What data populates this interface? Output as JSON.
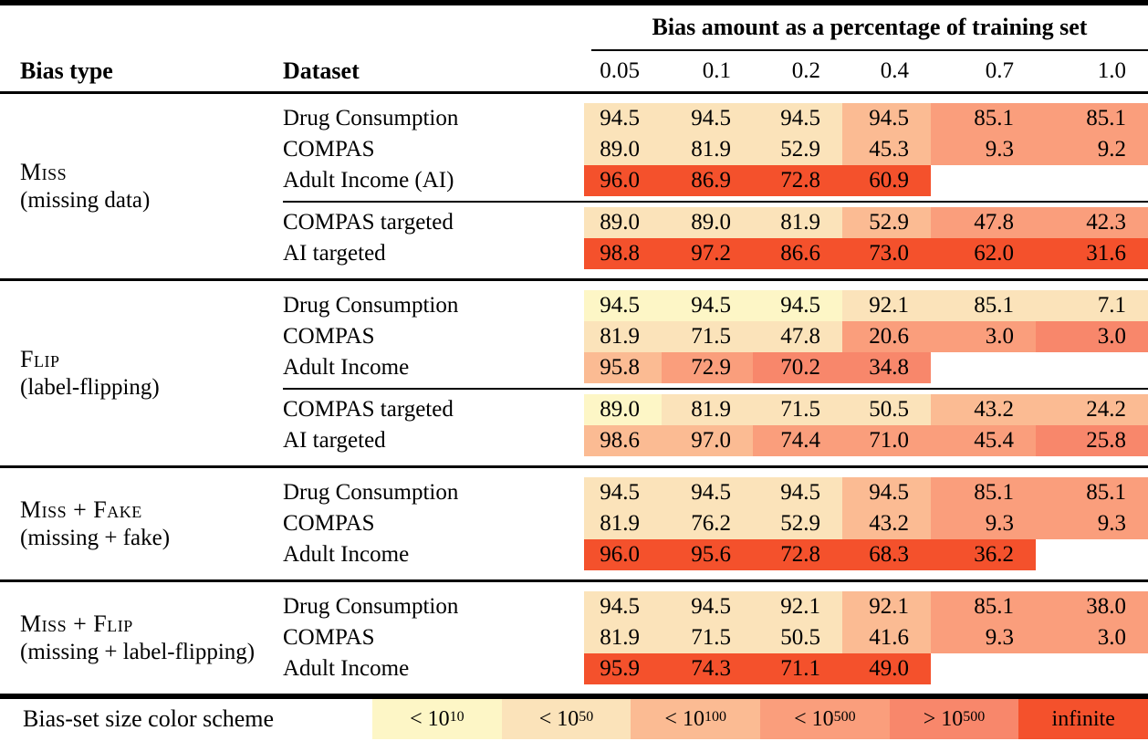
{
  "table": {
    "header": {
      "bias_type": "Bias type",
      "dataset": "Dataset",
      "span_title": "Bias amount as a percentage of training set",
      "percentages": [
        "0.05",
        "0.1",
        "0.2",
        "0.4",
        "0.7",
        "1.0"
      ]
    },
    "palette": {
      "1": "#FDF6C6",
      "2": "#FBE3BA",
      "3": "#FBBB93",
      "4": "#FA9E7C",
      "5": "#F8876B",
      "6": "#F4512C"
    },
    "sections": [
      {
        "bias_type": "Miss",
        "bias_desc": "(missing data)",
        "groups": [
          {
            "rows": [
              {
                "dataset": "Drug Consumption",
                "values": [
                  "94.5",
                  "94.5",
                  "94.5",
                  "94.5",
                  "85.1",
                  "85.1"
                ],
                "levels": [
                  2,
                  2,
                  2,
                  3,
                  4,
                  4
                ]
              },
              {
                "dataset": "COMPAS",
                "values": [
                  "89.0",
                  "81.9",
                  "52.9",
                  "45.3",
                  "9.3",
                  "9.2"
                ],
                "levels": [
                  2,
                  2,
                  2,
                  3,
                  4,
                  4
                ]
              },
              {
                "dataset": "Adult Income (AI)",
                "values": [
                  "96.0",
                  "86.9",
                  "72.8",
                  "60.9",
                  "",
                  ""
                ],
                "levels": [
                  6,
                  6,
                  6,
                  6,
                  0,
                  0
                ]
              }
            ]
          },
          {
            "rows": [
              {
                "dataset": "COMPAS targeted",
                "values": [
                  "89.0",
                  "89.0",
                  "81.9",
                  "52.9",
                  "47.8",
                  "42.3"
                ],
                "levels": [
                  2,
                  2,
                  2,
                  3,
                  4,
                  4
                ]
              },
              {
                "dataset": "AI targeted",
                "values": [
                  "98.8",
                  "97.2",
                  "86.6",
                  "73.0",
                  "62.0",
                  "31.6"
                ],
                "levels": [
                  6,
                  6,
                  6,
                  6,
                  6,
                  6
                ]
              }
            ]
          }
        ]
      },
      {
        "bias_type": "Flip",
        "bias_desc": "(label-flipping)",
        "groups": [
          {
            "rows": [
              {
                "dataset": "Drug Consumption",
                "values": [
                  "94.5",
                  "94.5",
                  "94.5",
                  "92.1",
                  "85.1",
                  "7.1"
                ],
                "levels": [
                  1,
                  1,
                  1,
                  2,
                  2,
                  2
                ]
              },
              {
                "dataset": "COMPAS",
                "values": [
                  "81.9",
                  "71.5",
                  "47.8",
                  "20.6",
                  "3.0",
                  "3.0"
                ],
                "levels": [
                  2,
                  2,
                  2,
                  4,
                  4,
                  5
                ]
              },
              {
                "dataset": "Adult Income",
                "values": [
                  "95.8",
                  "72.9",
                  "70.2",
                  "34.8",
                  "",
                  ""
                ],
                "levels": [
                  3,
                  4,
                  5,
                  5,
                  0,
                  0
                ]
              }
            ]
          },
          {
            "rows": [
              {
                "dataset": "COMPAS targeted",
                "values": [
                  "89.0",
                  "81.9",
                  "71.5",
                  "50.5",
                  "43.2",
                  "24.2"
                ],
                "levels": [
                  1,
                  2,
                  2,
                  2,
                  3,
                  3
                ]
              },
              {
                "dataset": "AI targeted",
                "values": [
                  "98.6",
                  "97.0",
                  "74.4",
                  "71.0",
                  "45.4",
                  "25.8"
                ],
                "levels": [
                  3,
                  3,
                  4,
                  4,
                  4,
                  5
                ]
              }
            ]
          }
        ]
      },
      {
        "bias_type": "Miss + Fake",
        "bias_desc": "(missing + fake)",
        "groups": [
          {
            "rows": [
              {
                "dataset": "Drug Consumption",
                "values": [
                  "94.5",
                  "94.5",
                  "94.5",
                  "94.5",
                  "85.1",
                  "85.1"
                ],
                "levels": [
                  2,
                  2,
                  2,
                  3,
                  4,
                  4
                ]
              },
              {
                "dataset": "COMPAS",
                "values": [
                  "81.9",
                  "76.2",
                  "52.9",
                  "43.2",
                  "9.3",
                  "9.3"
                ],
                "levels": [
                  2,
                  2,
                  2,
                  3,
                  4,
                  4
                ]
              },
              {
                "dataset": "Adult Income",
                "values": [
                  "96.0",
                  "95.6",
                  "72.8",
                  "68.3",
                  "36.2",
                  ""
                ],
                "levels": [
                  6,
                  6,
                  6,
                  6,
                  6,
                  0
                ]
              }
            ]
          }
        ]
      },
      {
        "bias_type": "Miss + Flip",
        "bias_desc": "(missing + label-flipping)",
        "groups": [
          {
            "rows": [
              {
                "dataset": "Drug Consumption",
                "values": [
                  "94.5",
                  "94.5",
                  "92.1",
                  "92.1",
                  "85.1",
                  "38.0"
                ],
                "levels": [
                  2,
                  2,
                  2,
                  3,
                  4,
                  4
                ]
              },
              {
                "dataset": "COMPAS",
                "values": [
                  "81.9",
                  "71.5",
                  "50.5",
                  "41.6",
                  "9.3",
                  "3.0"
                ],
                "levels": [
                  2,
                  2,
                  2,
                  3,
                  4,
                  4
                ]
              },
              {
                "dataset": "Adult Income",
                "values": [
                  "95.9",
                  "74.3",
                  "71.1",
                  "49.0",
                  "",
                  ""
                ],
                "levels": [
                  6,
                  6,
                  6,
                  6,
                  0,
                  0
                ]
              }
            ]
          }
        ]
      }
    ],
    "legend": {
      "label": "Bias-set size color scheme",
      "items": [
        {
          "prefix": "< 10",
          "sup": "10",
          "level": 1
        },
        {
          "prefix": "< 10",
          "sup": "50",
          "level": 2
        },
        {
          "prefix": "< 10",
          "sup": "100",
          "level": 3
        },
        {
          "prefix": "< 10",
          "sup": "500",
          "level": 4
        },
        {
          "prefix": "> 10",
          "sup": "500",
          "level": 5
        },
        {
          "prefix": "infinite",
          "sup": "",
          "level": 6
        }
      ]
    }
  }
}
